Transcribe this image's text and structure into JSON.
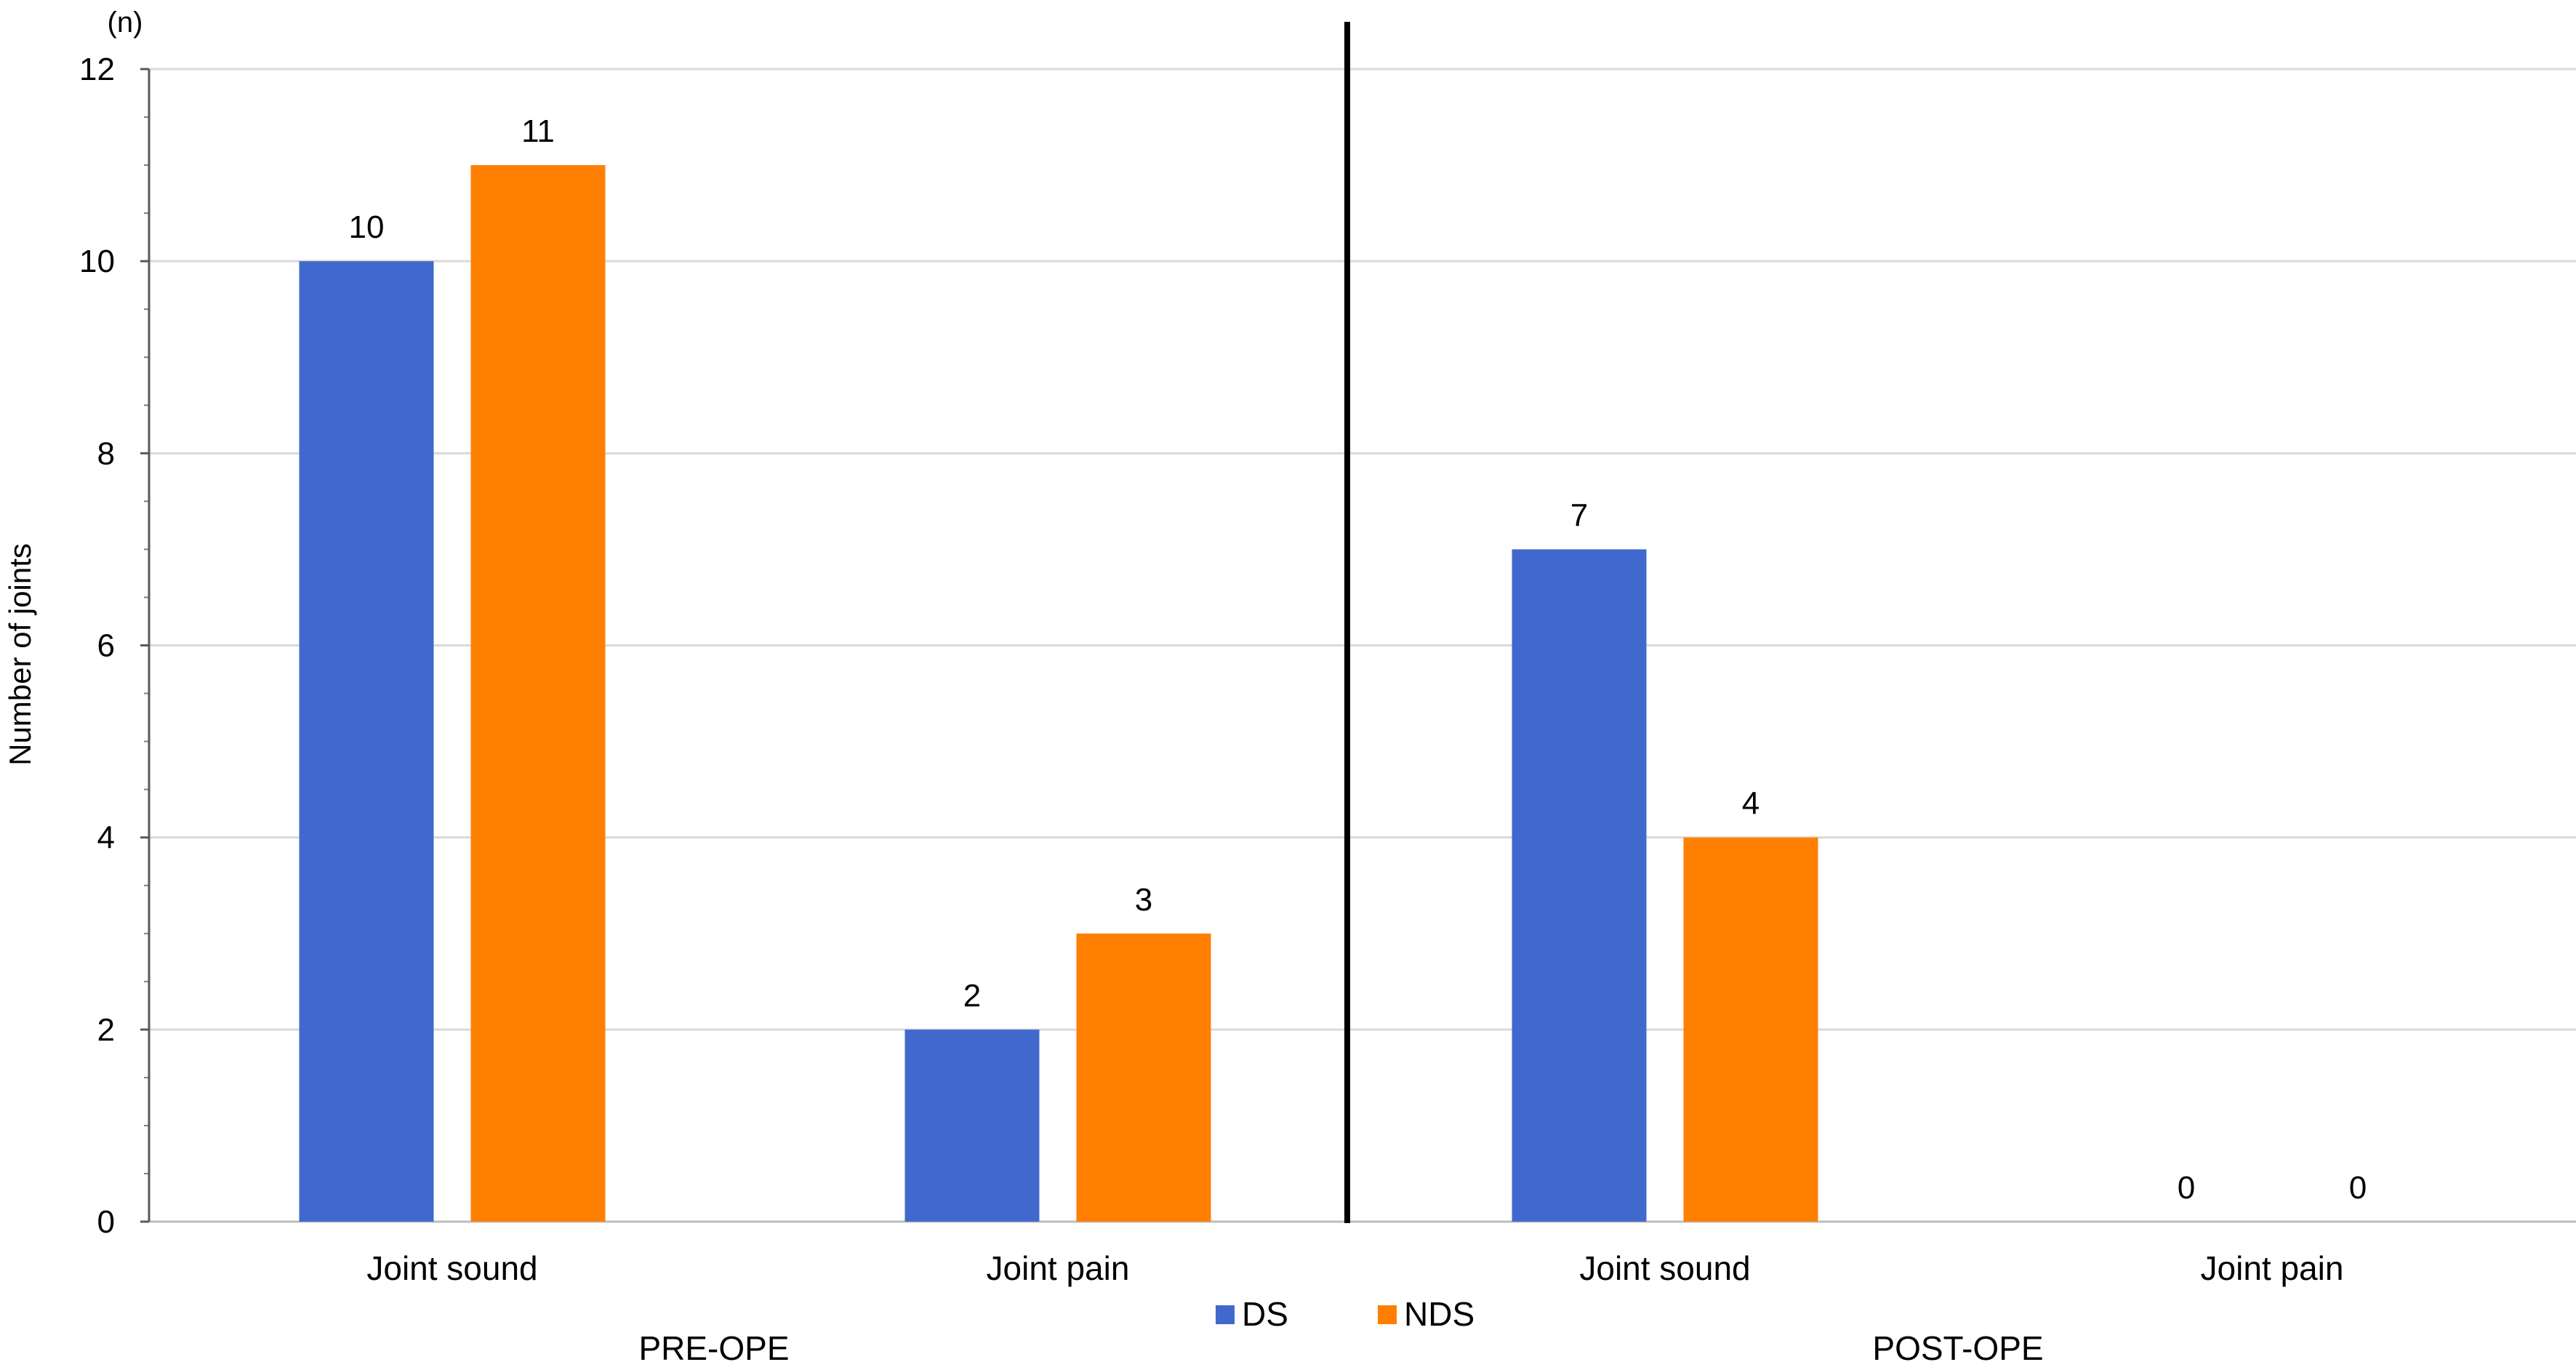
{
  "chart_data": {
    "type": "bar",
    "title": "",
    "xlabel": "",
    "ylabel": "Number of joints",
    "y_unit_label": "(n)",
    "ylim": [
      0,
      12
    ],
    "y_ticks": [
      0,
      2,
      4,
      6,
      8,
      10,
      12
    ],
    "grid": true,
    "legend_position": "bottom-center",
    "groups": [
      {
        "label": "PRE-OPE",
        "categories": [
          "Joint sound",
          "Joint pain"
        ]
      },
      {
        "label": "POST-OPE",
        "categories": [
          "Joint sound",
          "Joint pain"
        ]
      }
    ],
    "categories": [
      "Joint sound",
      "Joint pain",
      "Joint sound",
      "Joint pain"
    ],
    "series": [
      {
        "name": "DS",
        "color": "#4169CD",
        "values": [
          10,
          2,
          7,
          0
        ]
      },
      {
        "name": "NDS",
        "color": "#FF7F00",
        "values": [
          11,
          3,
          4,
          0
        ]
      }
    ]
  }
}
